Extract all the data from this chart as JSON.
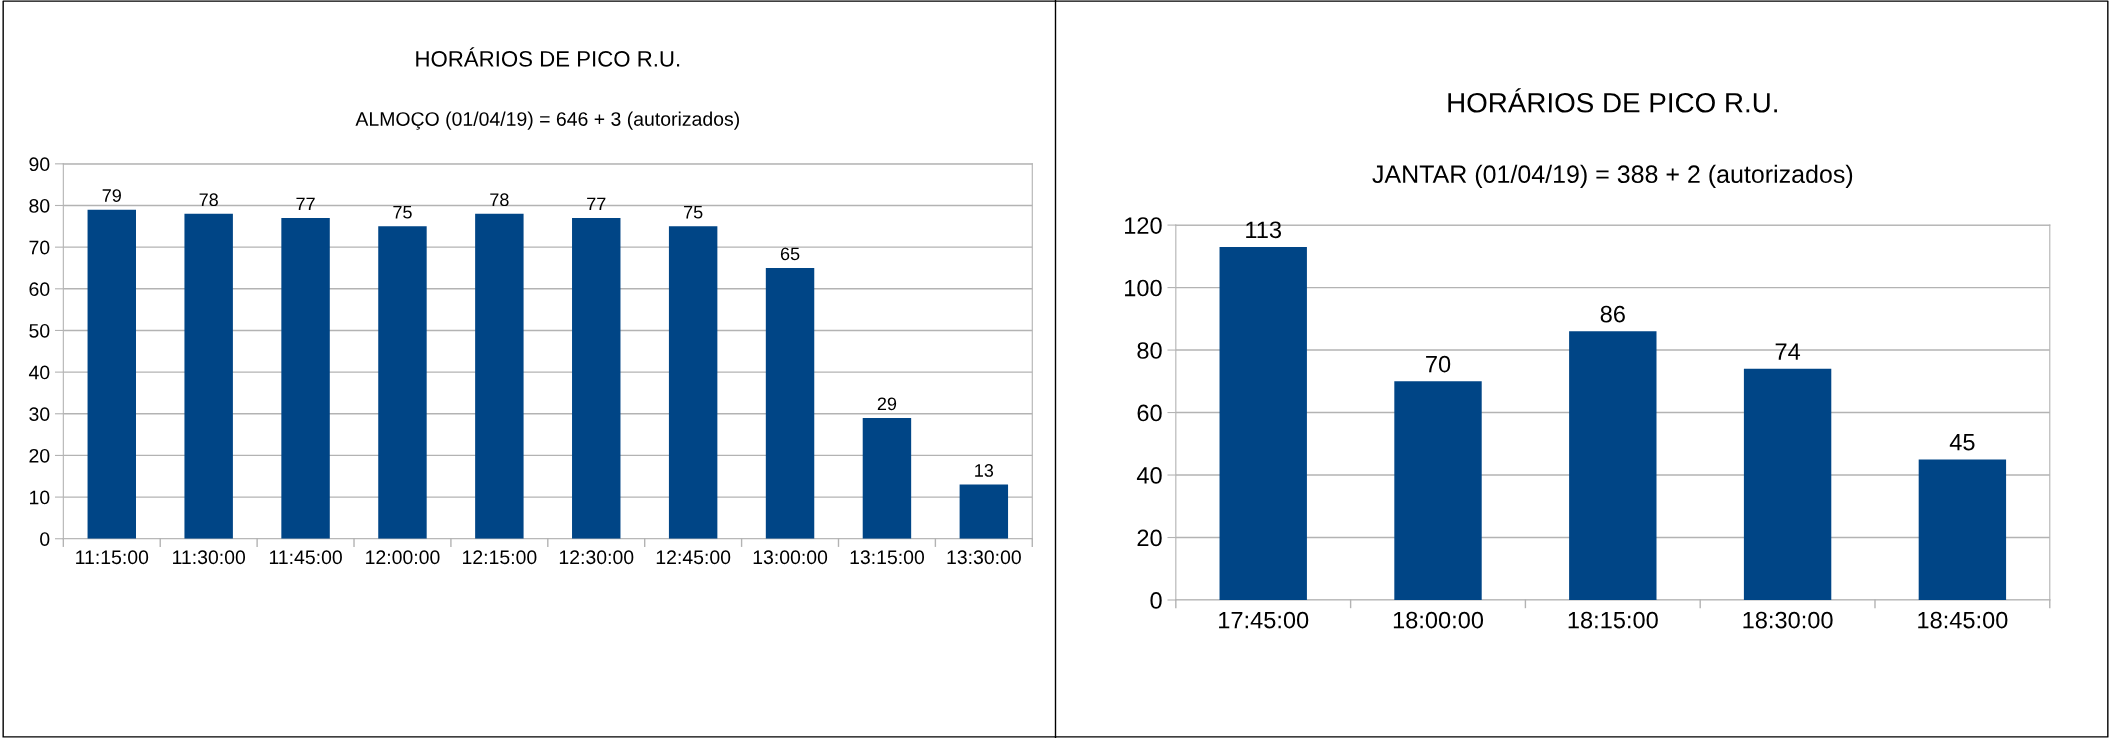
{
  "chart_data": [
    {
      "type": "bar",
      "title": "HORÁRIOS DE PICO R.U.",
      "subtitle": "ALMOÇO (01/04/19) = 646 + 3 (autorizados)",
      "categories": [
        "11:15:00",
        "11:30:00",
        "11:45:00",
        "12:00:00",
        "12:15:00",
        "12:30:00",
        "12:45:00",
        "13:00:00",
        "13:15:00",
        "13:30:00"
      ],
      "values": [
        79,
        78,
        77,
        75,
        78,
        77,
        75,
        65,
        29,
        13
      ],
      "color": "#004586",
      "ylim": [
        0,
        90
      ],
      "yticks": [
        0,
        10,
        20,
        30,
        40,
        50,
        60,
        70,
        80,
        90
      ],
      "grid": "y",
      "data_labels": true,
      "legend": false
    },
    {
      "type": "bar",
      "title": "HORÁRIOS DE PICO R.U.",
      "subtitle": "JANTAR (01/04/19) = 388 + 2 (autorizados)",
      "categories": [
        "17:45:00",
        "18:00:00",
        "18:15:00",
        "18:30:00",
        "18:45:00"
      ],
      "values": [
        113,
        70,
        86,
        74,
        45
      ],
      "color": "#004586",
      "ylim": [
        0,
        120
      ],
      "yticks": [
        0,
        20,
        40,
        60,
        80,
        100,
        120
      ],
      "grid": "y",
      "data_labels": true,
      "legend": false
    }
  ]
}
